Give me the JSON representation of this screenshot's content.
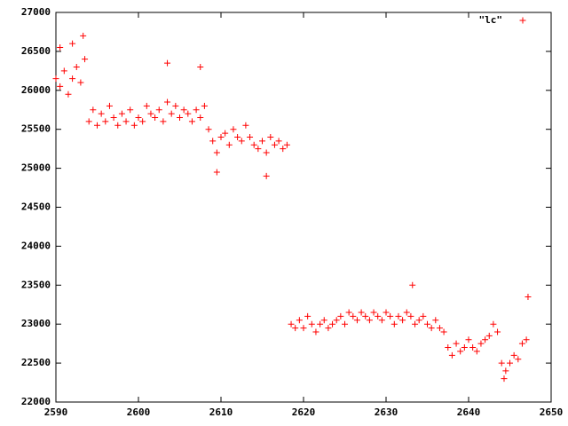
{
  "chart_data": {
    "type": "scatter",
    "series": [
      {
        "name": "\"lc\"",
        "color": "#ff0000",
        "x": [
          2590,
          2590.5,
          2591,
          2591.5,
          2592,
          2592.5,
          2593,
          2593.3,
          2593.5,
          2594,
          2594.5,
          2595,
          2595.5,
          2596,
          2596.5,
          2597,
          2597.5,
          2598,
          2598.5,
          2599,
          2599.5,
          2600,
          2600.5,
          2601,
          2601.5,
          2602,
          2602.5,
          2603,
          2603.5,
          2604,
          2604.5,
          2605,
          2605.5,
          2606,
          2606.5,
          2607,
          2607.5,
          2608,
          2608.5,
          2609,
          2609.5,
          2610,
          2610.5,
          2611,
          2611.5,
          2612,
          2612.5,
          2613,
          2613.5,
          2614,
          2614.5,
          2615,
          2615.5,
          2616,
          2616.5,
          2617,
          2617.5,
          2618,
          2618.5,
          2619,
          2619.5,
          2620,
          2620.5,
          2621,
          2621.5,
          2622,
          2622.5,
          2623,
          2623.5,
          2624,
          2624.5,
          2625,
          2625.5,
          2626,
          2626.5,
          2627,
          2627.5,
          2628,
          2628.5,
          2629,
          2629.5,
          2630,
          2630.5,
          2631,
          2631.5,
          2632,
          2632.5,
          2633,
          2633.5,
          2634,
          2634.5,
          2635,
          2635.5,
          2636,
          2636.5,
          2637,
          2637.5,
          2638,
          2638.5,
          2639,
          2639.5,
          2640,
          2640.5,
          2641,
          2641.5,
          2642,
          2642.5,
          2643,
          2643.5,
          2644,
          2644.5,
          2645,
          2645.5,
          2646,
          2646.5,
          2647,
          2609.5,
          2615.5,
          2603.5,
          2607.5,
          2633.2,
          2644.3,
          2647.2,
          2590.5,
          2592
        ],
        "values": [
          26150,
          26050,
          26250,
          25950,
          26150,
          26300,
          26100,
          26700,
          26400,
          25600,
          25750,
          25550,
          25700,
          25600,
          25800,
          25650,
          25550,
          25700,
          25600,
          25750,
          25550,
          25650,
          25600,
          25800,
          25700,
          25650,
          25750,
          25600,
          25850,
          25700,
          25800,
          25650,
          25750,
          25700,
          25600,
          25750,
          25650,
          25800,
          25500,
          25350,
          25200,
          25400,
          25450,
          25300,
          25500,
          25400,
          25350,
          25550,
          25400,
          25300,
          25250,
          25350,
          25200,
          25400,
          25300,
          25350,
          25250,
          25300,
          23000,
          22950,
          23050,
          22950,
          23100,
          23000,
          22900,
          23000,
          23050,
          22950,
          23000,
          23050,
          23100,
          23000,
          23150,
          23100,
          23050,
          23150,
          23100,
          23050,
          23150,
          23100,
          23050,
          23150,
          23100,
          23000,
          23100,
          23050,
          23150,
          23100,
          23000,
          23050,
          23100,
          23000,
          22950,
          23050,
          22950,
          22900,
          22700,
          22600,
          22750,
          22650,
          22700,
          22800,
          22700,
          22650,
          22750,
          22800,
          22850,
          23000,
          22900,
          22500,
          22400,
          22500,
          22600,
          22550,
          22750,
          22800,
          24950,
          24900,
          26350,
          26300,
          23500,
          22300,
          23350,
          26550,
          26600
        ]
      }
    ],
    "xlim": [
      2590,
      2650
    ],
    "xticks": [
      2590,
      2600,
      2610,
      2620,
      2630,
      2640,
      2650
    ],
    "ylim": [
      22000,
      27000
    ],
    "yticks": [
      22000,
      22500,
      23000,
      23500,
      24000,
      24500,
      25000,
      25500,
      26000,
      26500,
      27000
    ],
    "legend": "top-right"
  }
}
